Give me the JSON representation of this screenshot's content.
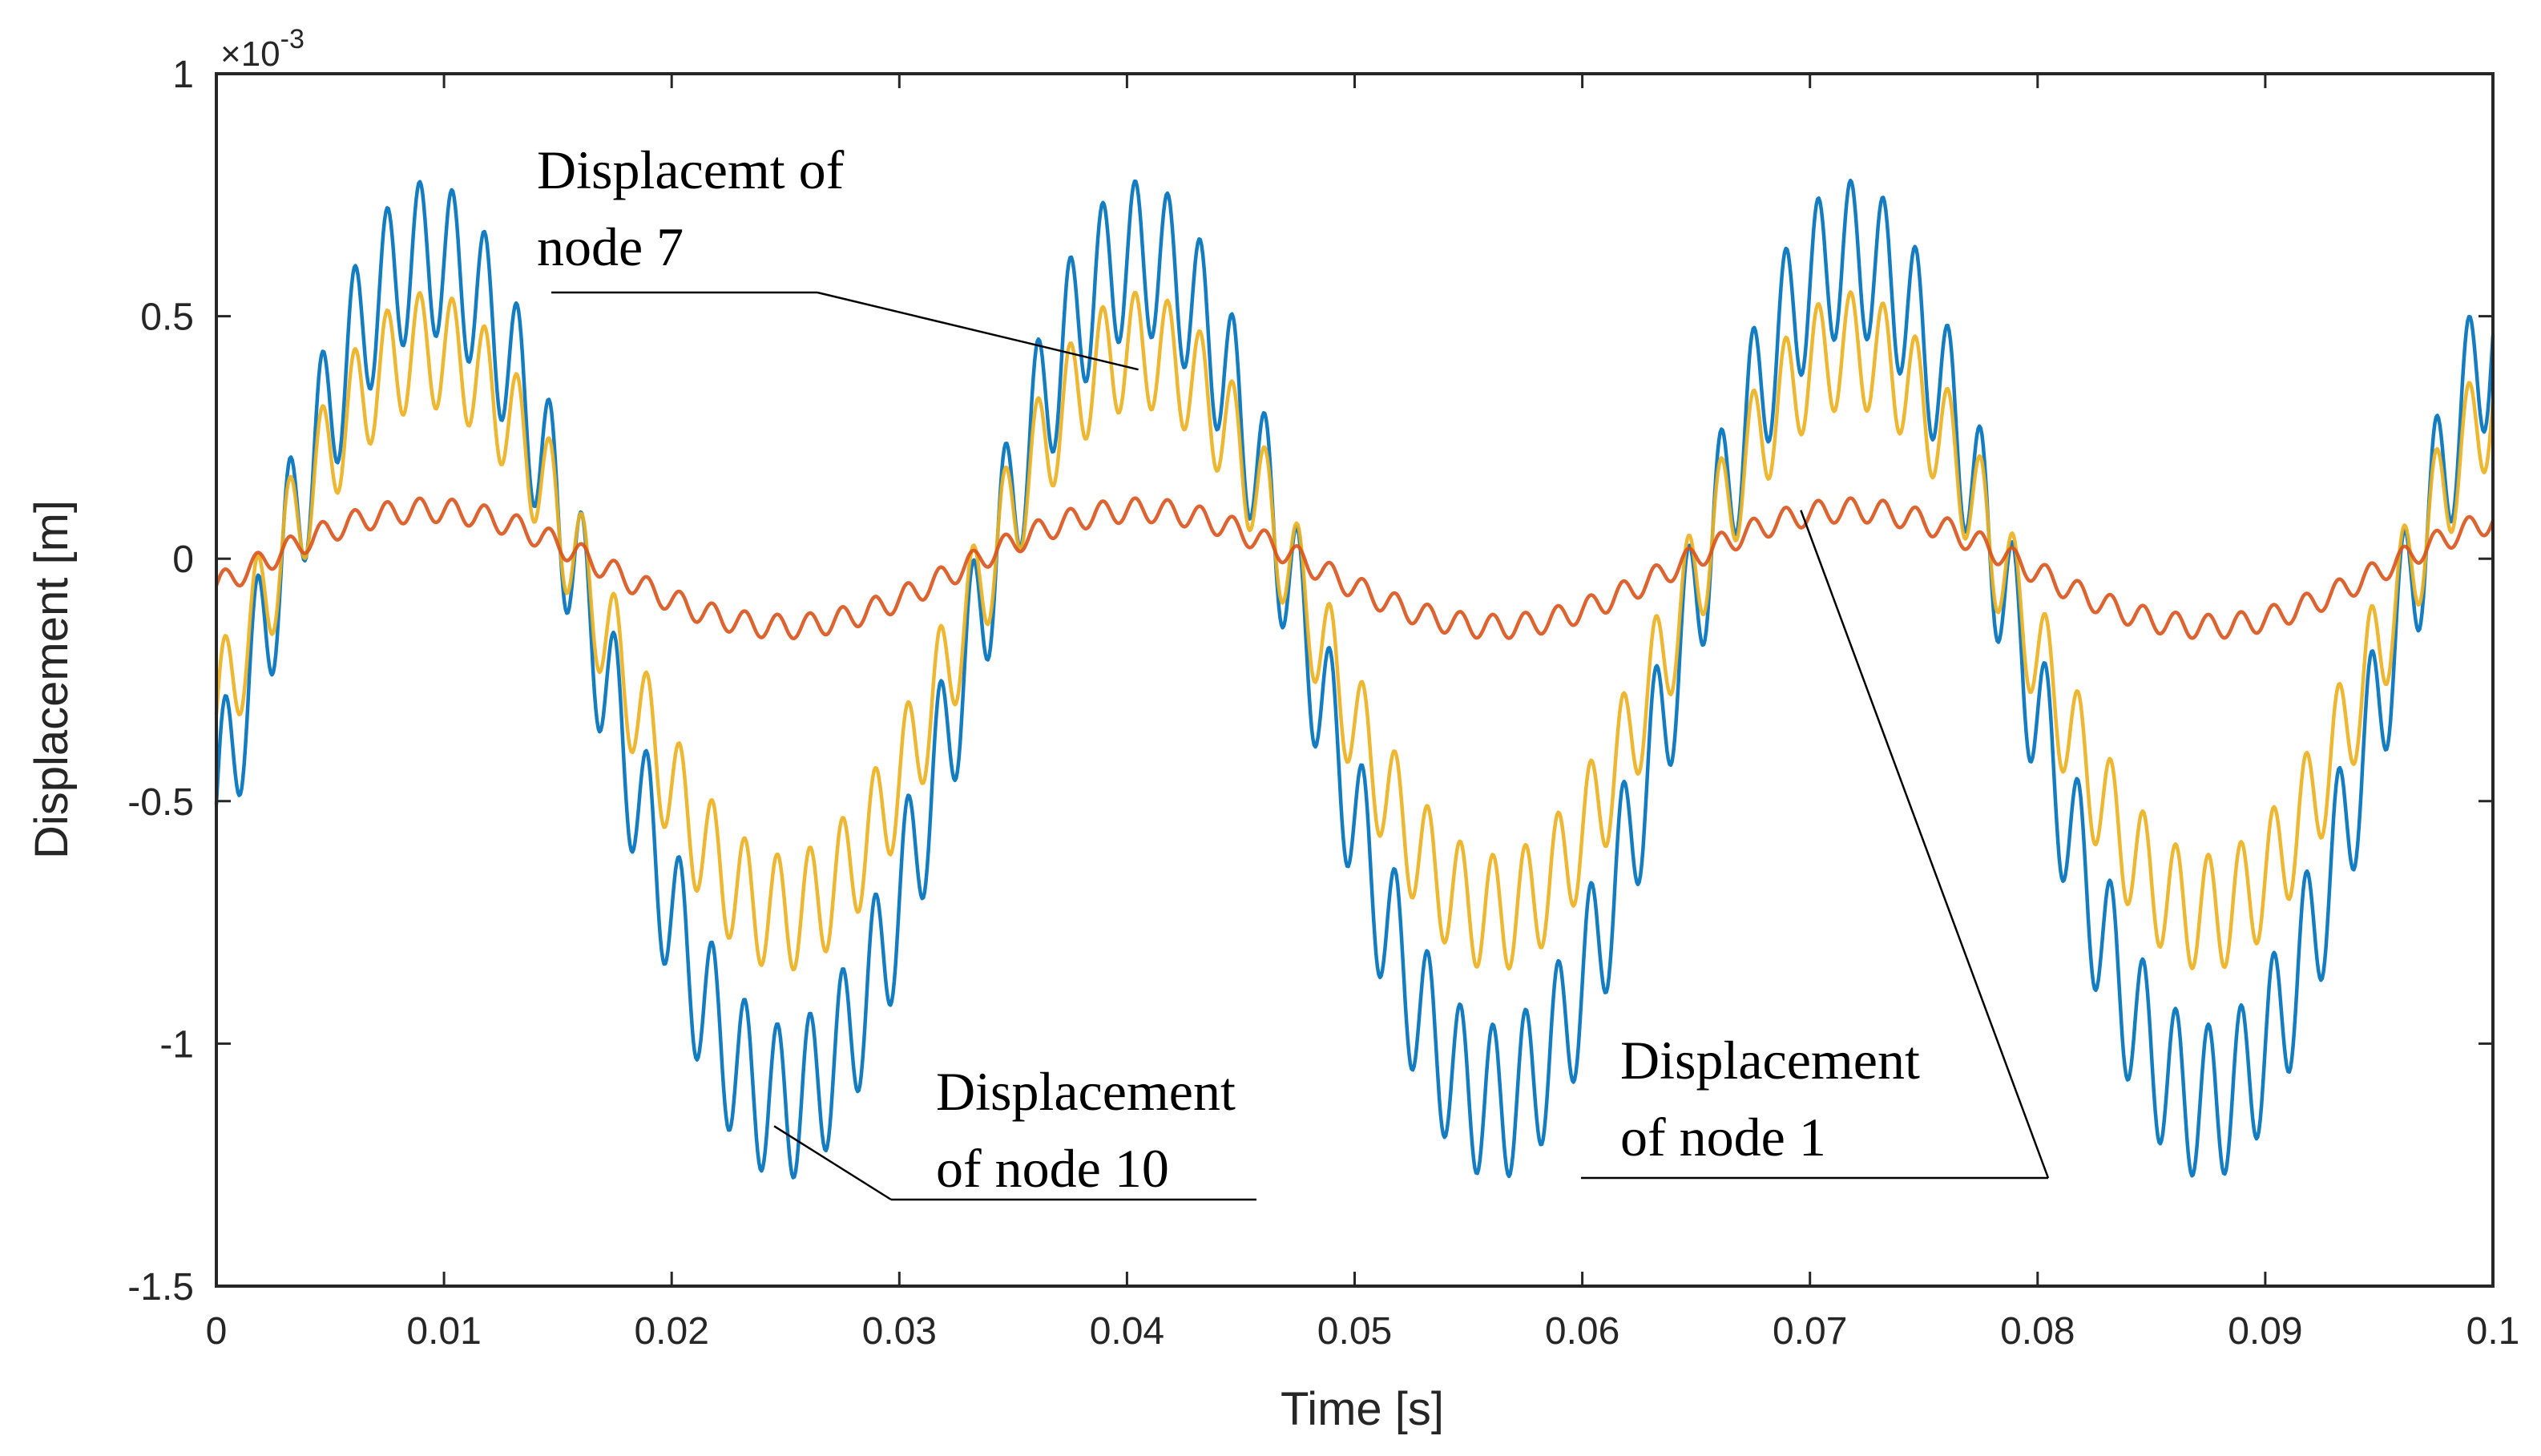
{
  "chart_data": {
    "type": "line",
    "title": "",
    "xlabel": "Time [s]",
    "ylabel": "Displacement [m]",
    "y_exponent": "×10",
    "y_exponent_power": "-3",
    "xlim": [
      0,
      0.1
    ],
    "ylim": [
      -1.5,
      1.0
    ],
    "x_ticks": [
      0,
      0.01,
      0.02,
      0.03,
      0.04,
      0.05,
      0.06,
      0.07,
      0.08,
      0.09,
      0.1
    ],
    "x_tick_labels": [
      "0",
      "0.01",
      "0.02",
      "0.03",
      "0.04",
      "0.05",
      "0.06",
      "0.07",
      "0.08",
      "0.09",
      "0.1"
    ],
    "y_ticks": [
      1.0,
      0.5,
      0,
      -0.5,
      -1.0,
      -1.5
    ],
    "y_tick_labels": [
      "1",
      "0.5",
      "0",
      "-0.5",
      "-1",
      "-1.5"
    ],
    "grid": false,
    "base_frequency_hz": 32,
    "ripple_frequency_hz": 700,
    "series": [
      {
        "name": "Displacement of node 10",
        "color": "#0072BD",
        "center": -0.25,
        "amplitude": 0.87,
        "ripple": 0.16,
        "phase": -0.3
      },
      {
        "name": "Displacement of node 7",
        "color": "#EDB120",
        "center": -0.15,
        "amplitude": 0.58,
        "ripple": 0.12,
        "phase": -0.3
      },
      {
        "name": "Displacement of node 1",
        "color": "#D95319",
        "center": -0.02,
        "amplitude": 0.12,
        "ripple": 0.025,
        "phase": -0.3
      }
    ],
    "annotations": [
      {
        "lines": [
          "Displacemt of",
          "node 7"
        ],
        "target_x": 0.0405,
        "target_y": 0.39
      },
      {
        "lines": [
          "Displacement",
          "of node 10"
        ],
        "target_x": 0.0245,
        "target_y": -1.17
      },
      {
        "lines": [
          "Displacement",
          "of node 1"
        ],
        "target_x": 0.0696,
        "target_y": 0.1
      }
    ]
  }
}
